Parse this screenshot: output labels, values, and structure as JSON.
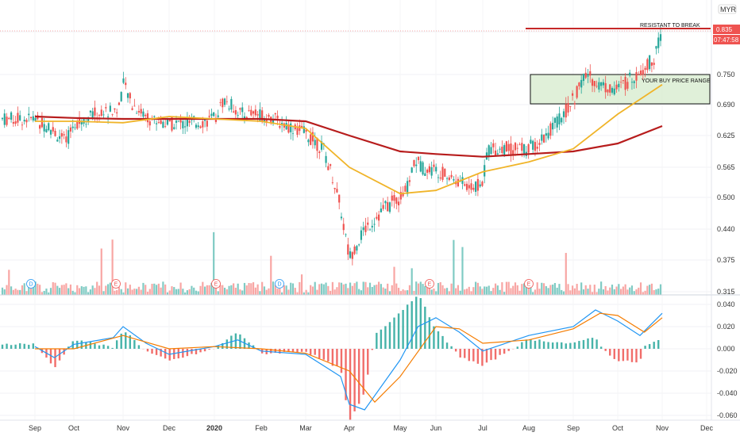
{
  "chart_data": {
    "type": "candlestick",
    "currency": "MYR",
    "x_labels": [
      "Sep",
      "Oct",
      "Nov",
      "Dec",
      "2020",
      "Feb",
      "Mar",
      "Apr",
      "May",
      "Jun",
      "Jul",
      "Aug",
      "Sep",
      "Oct",
      "Nov",
      "Dec"
    ],
    "y_ticks": [
      "0.835",
      "0.750",
      "0.690",
      "0.625",
      "0.565",
      "0.500",
      "0.440",
      "0.375",
      "0.315"
    ],
    "y_ticks_macd": [
      "0.040",
      "0.020",
      "0.000",
      "-0.020",
      "-0.040",
      "-0.060"
    ],
    "last_price": "0.835",
    "countdown": "07:47:58",
    "annotations": {
      "resistance": "RESISTANT TO BREAK",
      "buy_range": "YOUR BUY PRICE RANGE"
    },
    "resistance_level": 0.835,
    "buy_zone": {
      "low": 0.69,
      "high": 0.75
    },
    "price_ylim": [
      0.315,
      0.87
    ],
    "events": [
      "D",
      "E",
      "E",
      "D",
      "E",
      "E"
    ],
    "ma_short": [
      [
        0,
        0.655
      ],
      [
        1,
        0.655
      ],
      [
        2,
        0.652
      ],
      [
        3,
        0.665
      ],
      [
        4,
        0.66
      ],
      [
        5,
        0.655
      ],
      [
        6,
        0.64
      ],
      [
        7,
        0.565
      ],
      [
        8,
        0.508
      ],
      [
        9,
        0.515
      ],
      [
        10,
        0.555
      ],
      [
        11,
        0.575
      ],
      [
        12,
        0.6
      ],
      [
        13,
        0.67
      ],
      [
        14,
        0.73
      ]
    ],
    "ma_long": [
      [
        0,
        0.665
      ],
      [
        1,
        0.662
      ],
      [
        2,
        0.66
      ],
      [
        3,
        0.66
      ],
      [
        4,
        0.66
      ],
      [
        5,
        0.66
      ],
      [
        6,
        0.655
      ],
      [
        7,
        0.625
      ],
      [
        8,
        0.595
      ],
      [
        9,
        0.59
      ],
      [
        10,
        0.585
      ],
      [
        11,
        0.59
      ],
      [
        12,
        0.595
      ],
      [
        13,
        0.61
      ],
      [
        14,
        0.645
      ]
    ],
    "macd_line": [
      [
        0,
        0.002
      ],
      [
        0.5,
        -0.008
      ],
      [
        1,
        0.004
      ],
      [
        1.8,
        0.01
      ],
      [
        2,
        0.02
      ],
      [
        2.5,
        0.005
      ],
      [
        3,
        -0.005
      ],
      [
        4,
        0.002
      ],
      [
        4.5,
        0.008
      ],
      [
        5,
        -0.002
      ],
      [
        6,
        -0.005
      ],
      [
        6.8,
        -0.025
      ],
      [
        7,
        -0.05
      ],
      [
        7.3,
        -0.055
      ],
      [
        8,
        -0.01
      ],
      [
        8.5,
        0.02
      ],
      [
        9,
        0.028
      ],
      [
        9.5,
        0.015
      ],
      [
        10,
        -0.002
      ],
      [
        11,
        0.012
      ],
      [
        12,
        0.02
      ],
      [
        12.5,
        0.035
      ],
      [
        13,
        0.025
      ],
      [
        13.5,
        0.012
      ],
      [
        14,
        0.032
      ]
    ],
    "signal_line": [
      [
        0,
        0.0
      ],
      [
        1,
        0.0
      ],
      [
        2,
        0.012
      ],
      [
        3,
        0.0
      ],
      [
        4,
        0.002
      ],
      [
        5,
        0.0
      ],
      [
        6,
        -0.004
      ],
      [
        7,
        -0.02
      ],
      [
        7.5,
        -0.048
      ],
      [
        8,
        -0.025
      ],
      [
        9,
        0.02
      ],
      [
        9.5,
        0.018
      ],
      [
        10,
        0.005
      ],
      [
        11,
        0.008
      ],
      [
        12,
        0.018
      ],
      [
        12.6,
        0.032
      ],
      [
        13,
        0.03
      ],
      [
        13.6,
        0.015
      ],
      [
        14,
        0.028
      ]
    ]
  }
}
